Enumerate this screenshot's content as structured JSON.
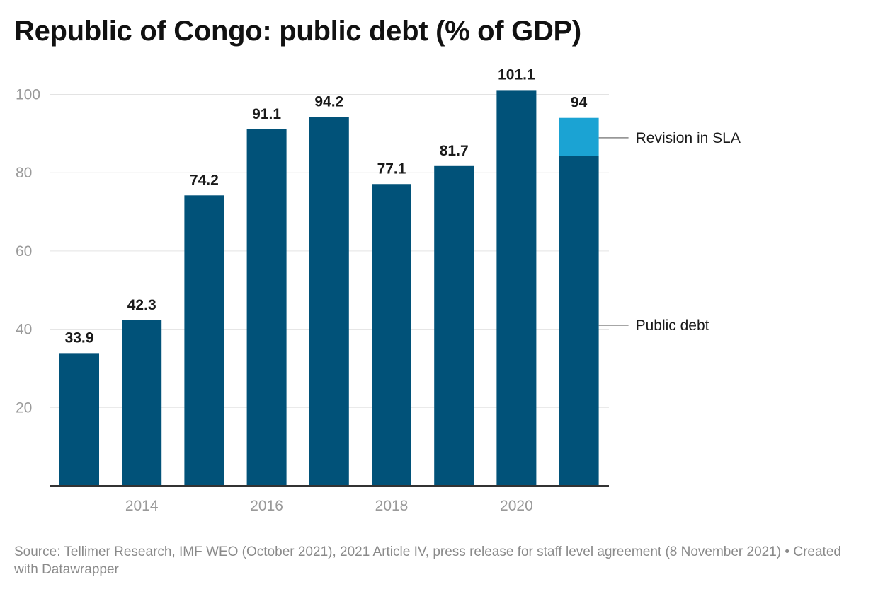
{
  "title": "Republic of Congo: public debt (% of GDP)",
  "footer": {
    "source": "Source: Tellimer Research, IMF WEO (October 2021), 2021 Article IV, press release for staff level agreement (8 November 2021)",
    "separator": " • ",
    "credit": "Created with Datawrapper"
  },
  "colors": {
    "public_debt": "#015279",
    "revision": "#1ba3d3",
    "grid": "#e3e3e3",
    "axis": "#333333",
    "tick_text": "#9a9a9a"
  },
  "chart_data": {
    "type": "bar",
    "stacked": true,
    "categories": [
      "2013",
      "2014",
      "2015",
      "2016",
      "2017",
      "2018",
      "2019",
      "2020",
      "2021"
    ],
    "x_tick_labels": [
      "2014",
      "2016",
      "2018",
      "2020"
    ],
    "y_ticks": [
      20,
      40,
      60,
      80,
      100
    ],
    "ylim": [
      0,
      100
    ],
    "grid": true,
    "series": [
      {
        "name": "Public debt",
        "values": [
          33.9,
          42.3,
          74.2,
          91.1,
          94.2,
          77.1,
          81.7,
          101.1,
          84.2
        ]
      },
      {
        "name": "Revision in SLA",
        "values": [
          0,
          0,
          0,
          0,
          0,
          0,
          0,
          0,
          9.8
        ]
      }
    ],
    "totals": [
      33.9,
      42.3,
      74.2,
      91.1,
      94.2,
      77.1,
      81.7,
      101.1,
      94
    ],
    "data_labels": [
      "33.9",
      "42.3",
      "74.2",
      "91.1",
      "94.2",
      "77.1",
      "81.7",
      "101.1",
      "94"
    ],
    "annotations": [
      {
        "text": "Revision in SLA",
        "series": "Revision in SLA"
      },
      {
        "text": "Public debt",
        "series": "Public debt"
      }
    ]
  }
}
